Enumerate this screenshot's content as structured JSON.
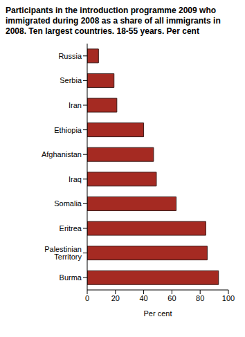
{
  "chart_data": {
    "type": "bar",
    "title": "Participants in the introduction programme 2009 who immigrated during 2008 as a share of all immigrants in 2008. Ten largest countries. 18-55 years. Per cent",
    "categories": [
      "Russia",
      "Serbia",
      "Iran",
      "Ethiopia",
      "Afghanistan",
      "Iraq",
      "Somalia",
      "Eritrea",
      "Palestinian Territory",
      "Burma"
    ],
    "values": [
      8,
      19,
      21,
      40,
      47,
      49,
      63,
      84,
      85,
      93
    ],
    "color": "#a52a22",
    "orientation": "horizontal",
    "xlabel": "Per cent",
    "xlim": [
      0,
      100
    ],
    "xticks": [
      0,
      20,
      40,
      60,
      80,
      100
    ],
    "grid": false
  }
}
